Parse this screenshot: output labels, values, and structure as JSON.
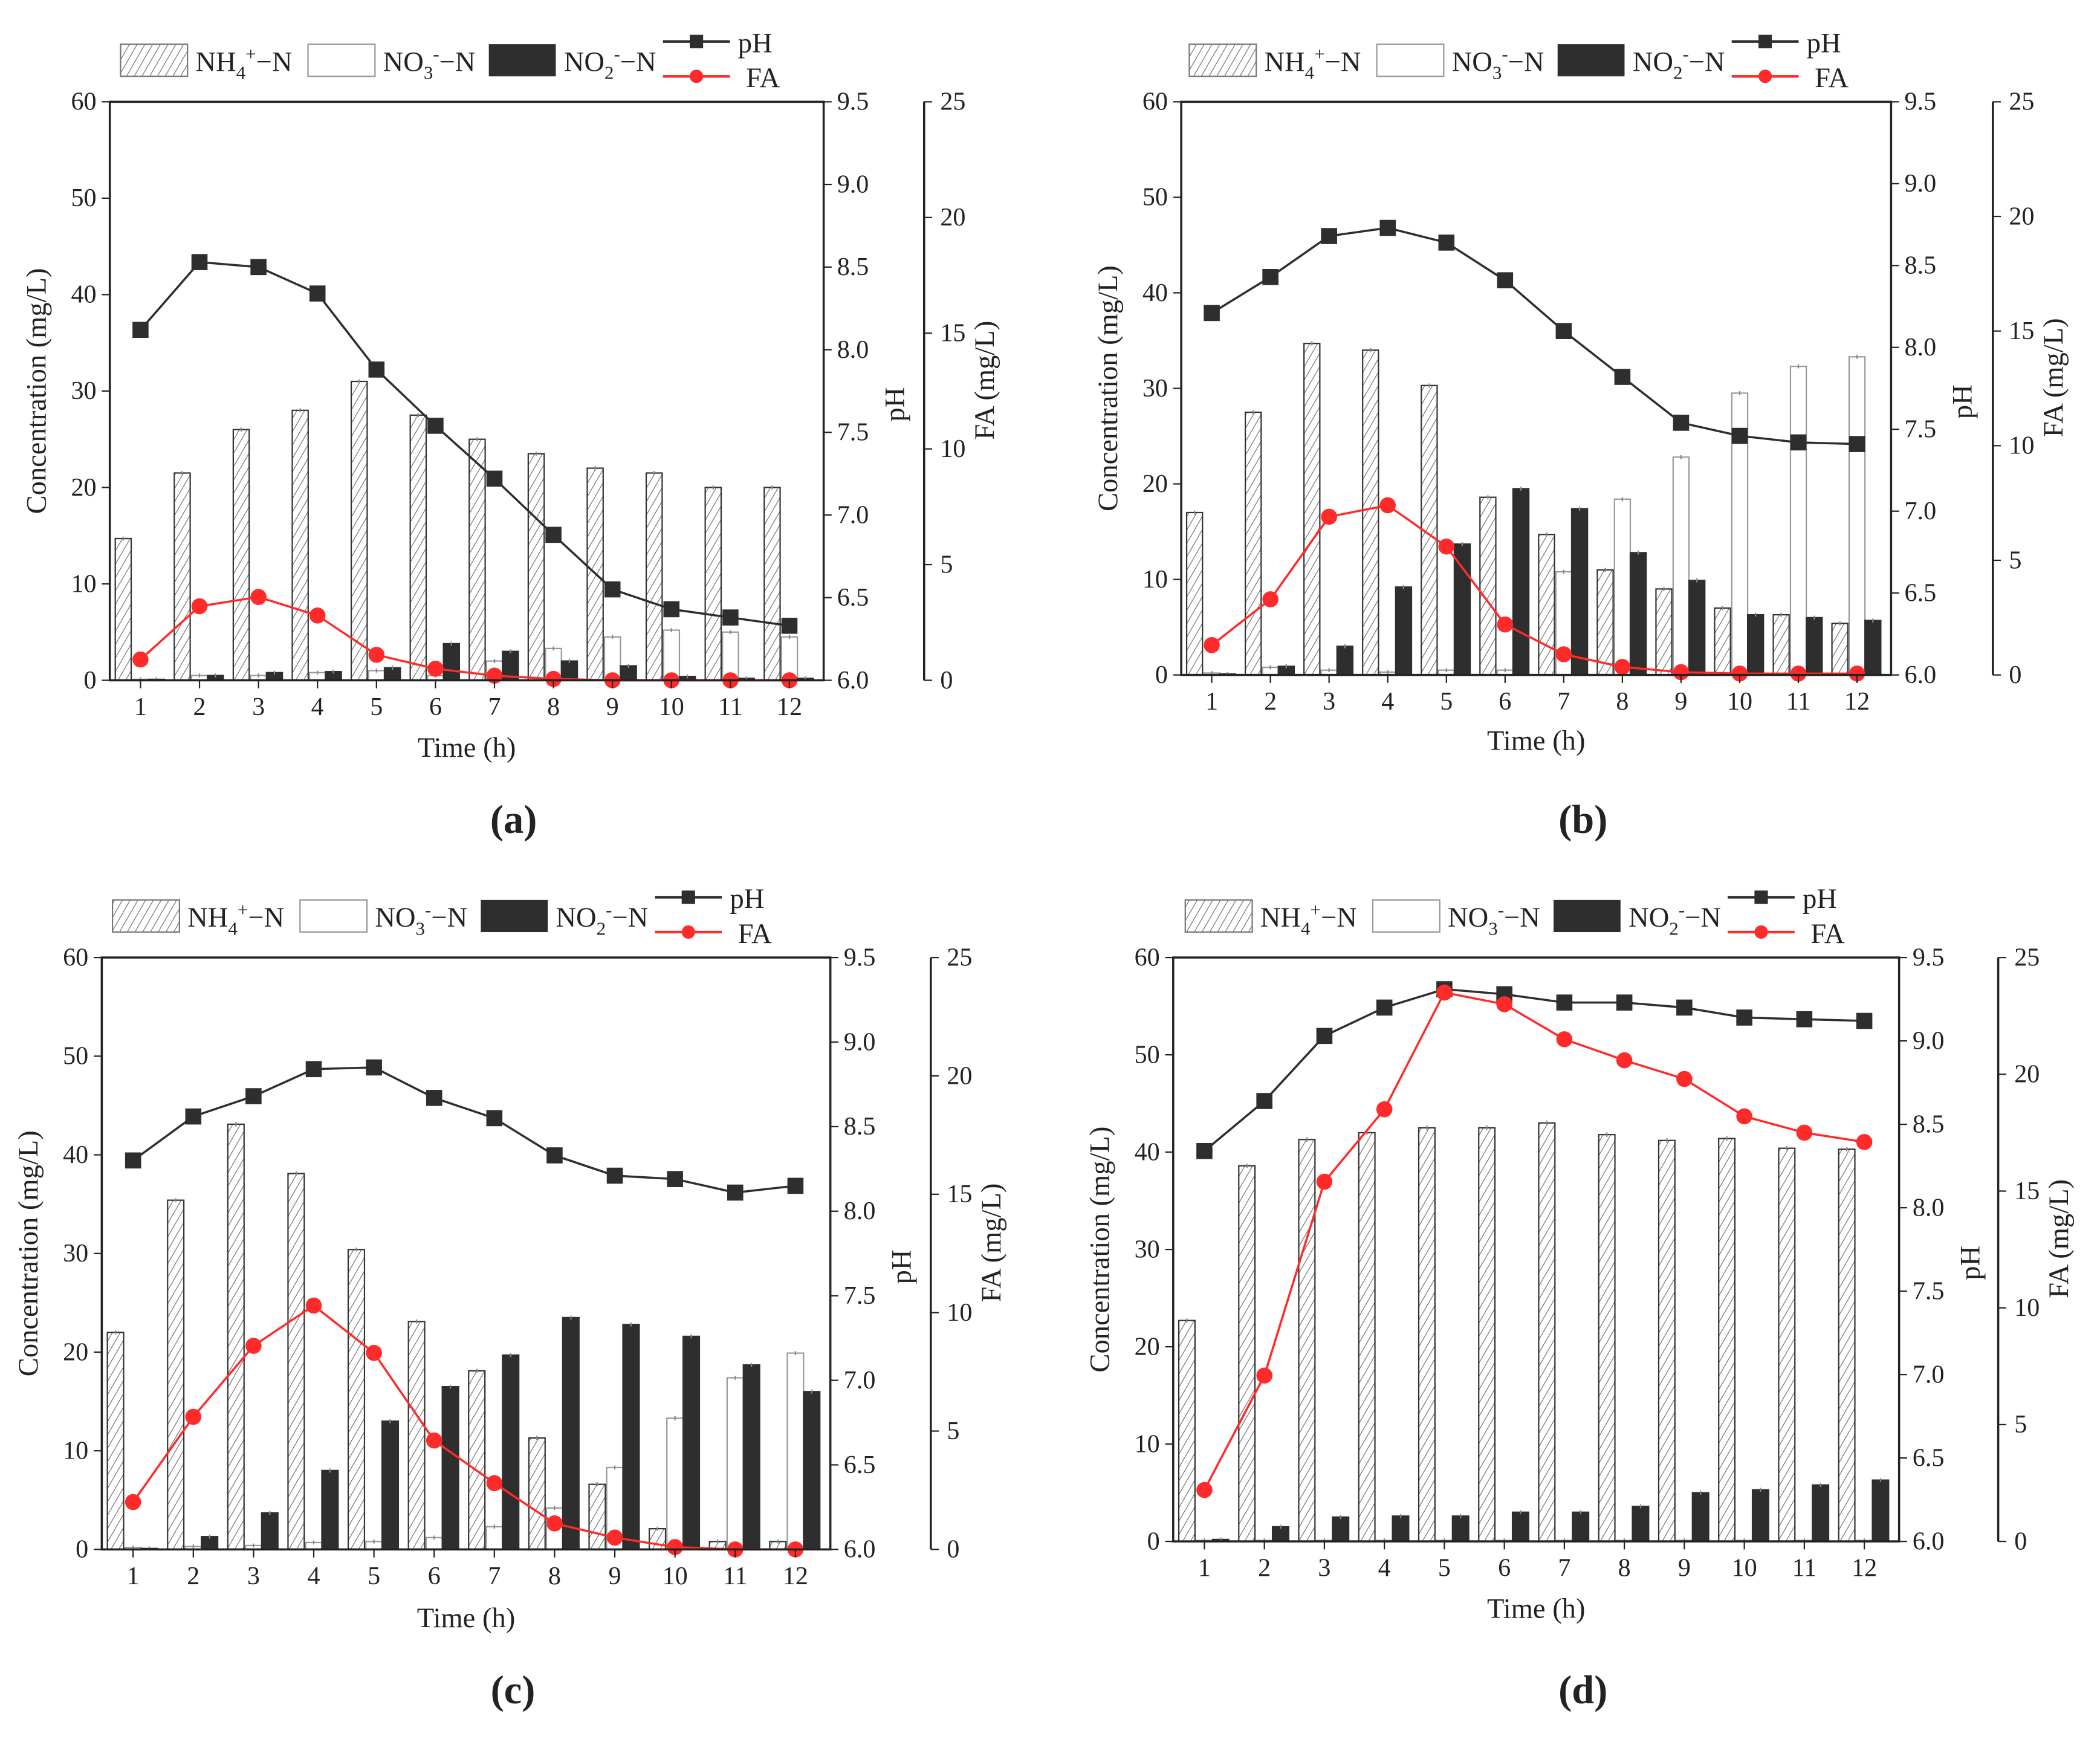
{
  "colors": {
    "nh4_fill": "#ffffff",
    "nh4_hatch": "#555555",
    "no3_fill": "#ffffff",
    "no2_fill": "#2e2e2e",
    "ph": "#2e2e2e",
    "fa": "#ff2a2a"
  },
  "legend": {
    "nh4": {
      "base": "NH",
      "sub": "4",
      "sup": "+",
      "tail": "−N"
    },
    "no3": {
      "base": "NO",
      "sub": "3",
      "sup": "-",
      "tail": "−N"
    },
    "no2": {
      "base": "NO",
      "sub": "2",
      "sup": "-",
      "tail": "−N"
    },
    "ph": "pH",
    "fa": "FA"
  },
  "axes": {
    "xlabel": "Time (h)",
    "ylabel_left": "Concentration (mg/L)",
    "ylabel_ph": "pH",
    "ylabel_fa": "FA (mg/L)",
    "left_ticks": [
      "0",
      "10",
      "20",
      "30",
      "40",
      "50",
      "60"
    ],
    "ph_ticks": [
      "6.0",
      "6.5",
      "7.0",
      "7.5",
      "8.0",
      "8.5",
      "9.0",
      "9.5"
    ],
    "fa_ticks": [
      "0",
      "5",
      "10",
      "15",
      "20",
      "25"
    ],
    "ylim_left": [
      0,
      60
    ],
    "ylim_ph": [
      6.0,
      9.5
    ],
    "ylim_fa": [
      0,
      25
    ]
  },
  "chart_data": [
    {
      "type": "bar",
      "panel_label": "(a)",
      "categories": [
        "1",
        "2",
        "3",
        "4",
        "5",
        "6",
        "7",
        "8",
        "9",
        "10",
        "11",
        "12"
      ],
      "series": [
        {
          "name": "NH4+-N",
          "kind": "bar",
          "axis": "left",
          "values": [
            14.7,
            21.5,
            26.0,
            28.0,
            31.0,
            27.5,
            25.0,
            23.5,
            22.0,
            21.5,
            20.0,
            20.0
          ]
        },
        {
          "name": "NO3--N",
          "kind": "bar",
          "axis": "left",
          "values": [
            0.1,
            0.5,
            0.5,
            0.8,
            1.0,
            0.5,
            2.0,
            3.3,
            4.5,
            5.2,
            5.0,
            4.5
          ]
        },
        {
          "name": "NO2--N",
          "kind": "bar",
          "axis": "left",
          "values": [
            0.1,
            0.5,
            0.8,
            0.9,
            1.3,
            3.8,
            3.0,
            2.0,
            1.5,
            0.4,
            0.2,
            0.2
          ]
        },
        {
          "name": "pH",
          "kind": "line",
          "axis": "ph",
          "values": [
            8.12,
            8.53,
            8.5,
            8.34,
            7.88,
            7.54,
            7.22,
            6.88,
            6.55,
            6.43,
            6.38,
            6.33
          ]
        },
        {
          "name": "FA",
          "kind": "line",
          "axis": "fa",
          "values": [
            0.9,
            3.2,
            3.6,
            2.8,
            1.1,
            0.5,
            0.2,
            0.06,
            0.0,
            0.0,
            0.0,
            0.0
          ]
        }
      ]
    },
    {
      "type": "bar",
      "panel_label": "(b)",
      "categories": [
        "1",
        "2",
        "3",
        "4",
        "5",
        "6",
        "7",
        "8",
        "9",
        "10",
        "11",
        "12"
      ],
      "series": [
        {
          "name": "NH4+-N",
          "kind": "bar",
          "axis": "left",
          "values": [
            17.0,
            27.5,
            34.7,
            34.0,
            30.3,
            18.6,
            14.7,
            11.0,
            9.0,
            7.0,
            6.3,
            5.4
          ]
        },
        {
          "name": "NO3--N",
          "kind": "bar",
          "axis": "left",
          "values": [
            0.2,
            0.8,
            0.5,
            0.3,
            0.5,
            0.5,
            10.8,
            18.4,
            22.8,
            29.5,
            32.3,
            33.3
          ]
        },
        {
          "name": "NO2--N",
          "kind": "bar",
          "axis": "left",
          "values": [
            0.1,
            0.9,
            3.0,
            9.2,
            13.7,
            19.5,
            17.4,
            12.8,
            9.9,
            6.3,
            6.0,
            5.7
          ]
        },
        {
          "name": "pH",
          "kind": "line",
          "axis": "ph",
          "values": [
            8.21,
            8.43,
            8.68,
            8.73,
            8.64,
            8.41,
            8.1,
            7.82,
            7.54,
            7.46,
            7.42,
            7.41
          ]
        },
        {
          "name": "FA",
          "kind": "line",
          "axis": "fa",
          "values": [
            1.3,
            3.3,
            6.9,
            7.4,
            5.6,
            2.2,
            0.9,
            0.35,
            0.12,
            0.06,
            0.06,
            0.06
          ]
        }
      ]
    },
    {
      "type": "bar",
      "panel_label": "(c)",
      "categories": [
        "1",
        "2",
        "3",
        "4",
        "5",
        "6",
        "7",
        "8",
        "9",
        "10",
        "11",
        "12"
      ],
      "series": [
        {
          "name": "NH4+-N",
          "kind": "bar",
          "axis": "left",
          "values": [
            22.0,
            35.4,
            43.1,
            38.1,
            30.4,
            23.1,
            18.1,
            11.3,
            6.6,
            2.1,
            0.8,
            0.8
          ]
        },
        {
          "name": "NO3--N",
          "kind": "bar",
          "axis": "left",
          "values": [
            0.2,
            0.3,
            0.4,
            0.7,
            0.8,
            1.2,
            2.3,
            4.2,
            8.3,
            13.3,
            17.4,
            19.9
          ]
        },
        {
          "name": "NO2--N",
          "kind": "bar",
          "axis": "left",
          "values": [
            0.1,
            1.3,
            3.7,
            8.0,
            13.0,
            16.5,
            19.7,
            23.5,
            22.8,
            21.6,
            18.7,
            16.0
          ]
        },
        {
          "name": "pH",
          "kind": "line",
          "axis": "ph",
          "values": [
            8.3,
            8.56,
            8.68,
            8.84,
            8.85,
            8.67,
            8.55,
            8.33,
            8.21,
            8.19,
            8.11,
            8.15
          ]
        },
        {
          "name": "FA",
          "kind": "line",
          "axis": "fa",
          "values": [
            2.0,
            5.6,
            8.6,
            10.3,
            8.3,
            4.6,
            2.8,
            1.1,
            0.5,
            0.1,
            0.0,
            0.0
          ]
        }
      ]
    },
    {
      "type": "bar",
      "panel_label": "(d)",
      "categories": [
        "1",
        "2",
        "3",
        "4",
        "5",
        "6",
        "7",
        "8",
        "9",
        "10",
        "11",
        "12"
      ],
      "series": [
        {
          "name": "NH4+-N",
          "kind": "bar",
          "axis": "left",
          "values": [
            22.7,
            38.6,
            41.3,
            42.0,
            42.5,
            42.5,
            43.0,
            41.8,
            41.2,
            41.4,
            40.4,
            40.3
          ]
        },
        {
          "name": "NO3--N",
          "kind": "bar",
          "axis": "left",
          "values": [
            0.1,
            0.1,
            0.1,
            0.1,
            0.1,
            0.1,
            0.1,
            0.1,
            0.1,
            0.1,
            0.1,
            0.1
          ]
        },
        {
          "name": "NO2--N",
          "kind": "bar",
          "axis": "left",
          "values": [
            0.2,
            1.5,
            2.5,
            2.6,
            2.6,
            3.0,
            3.0,
            3.6,
            5.0,
            5.3,
            5.8,
            6.3
          ]
        },
        {
          "name": "pH",
          "kind": "line",
          "axis": "ph",
          "values": [
            8.34,
            8.64,
            9.03,
            9.2,
            9.31,
            9.28,
            9.23,
            9.23,
            9.2,
            9.14,
            9.13,
            9.12
          ]
        },
        {
          "name": "FA",
          "kind": "line",
          "axis": "fa",
          "values": [
            2.2,
            7.1,
            15.4,
            18.5,
            23.5,
            23.0,
            21.5,
            20.6,
            19.8,
            18.2,
            17.5,
            17.1
          ]
        }
      ]
    }
  ]
}
